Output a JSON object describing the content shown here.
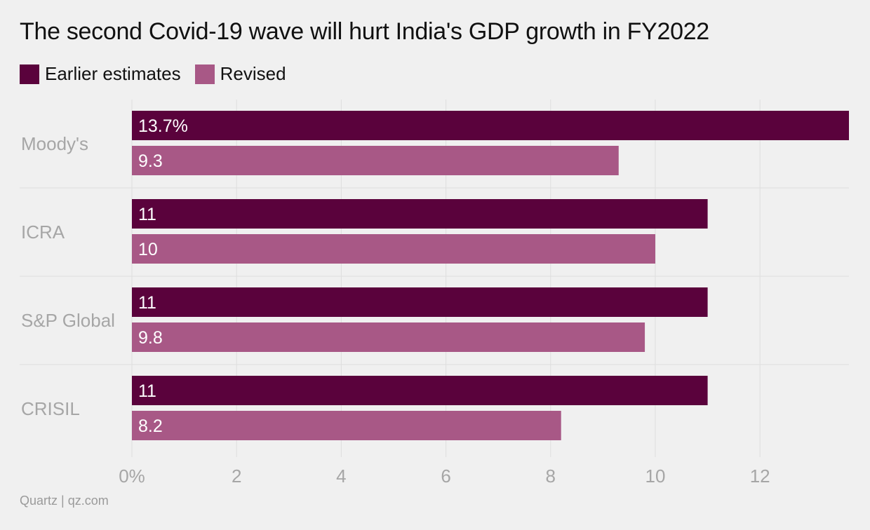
{
  "chart_data": {
    "type": "bar",
    "orientation": "horizontal",
    "title": "The second Covid-19 wave will hurt India's GDP growth in FY2022",
    "categories": [
      "Moody's",
      "ICRA",
      "S&P Global",
      "CRISIL"
    ],
    "series": [
      {
        "name": "Earlier estimates",
        "color": "#5a023c",
        "values": [
          13.7,
          11,
          11,
          11
        ],
        "labels": [
          "13.7%",
          "11",
          "11",
          "11"
        ]
      },
      {
        "name": "Revised",
        "color": "#a85886",
        "values": [
          9.3,
          10,
          9.8,
          8.2
        ],
        "labels": [
          "9.3",
          "10",
          "9.8",
          "8.2"
        ]
      }
    ],
    "xlim": [
      0,
      13.7
    ],
    "xticks": [
      0,
      2,
      4,
      6,
      8,
      10,
      12
    ],
    "xtick_labels": [
      "0%",
      "2",
      "4",
      "6",
      "8",
      "10",
      "12"
    ],
    "grid": true,
    "legend_position": "top-left"
  },
  "source": "Quartz | qz.com"
}
